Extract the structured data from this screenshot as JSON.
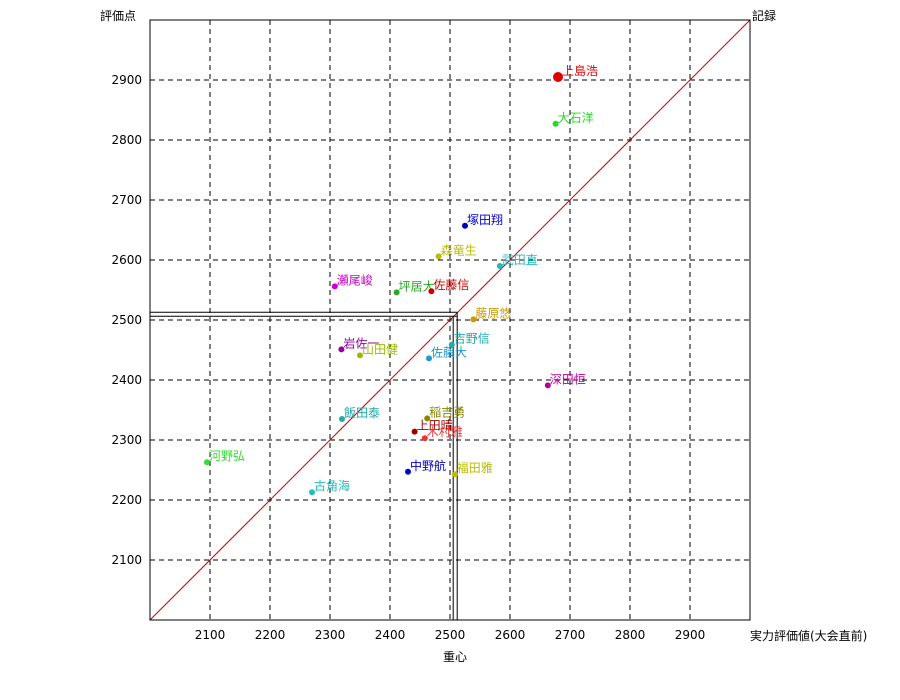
{
  "chart_data": {
    "type": "scatter",
    "ylabel": "評価点",
    "xlabel_right": "実力評価値(大会直前)",
    "xlabel_bottom": "重心",
    "diagonal_label": "記録",
    "xlim": [
      2000,
      3000
    ],
    "ylim": [
      2000,
      3000
    ],
    "xticks": [
      2100,
      2200,
      2300,
      2400,
      2500,
      2600,
      2700,
      2800,
      2900
    ],
    "yticks": [
      2100,
      2200,
      2300,
      2400,
      2500,
      2600,
      2700,
      2800,
      2900
    ],
    "grid": true,
    "centroid": {
      "x": 2512,
      "y": 2513
    },
    "diagonal": {
      "color": "#cc0000"
    },
    "points": [
      {
        "name": "上島浩",
        "x": 2680,
        "y": 2905,
        "color": "#e00000",
        "major": true
      },
      {
        "name": "大石洋",
        "x": 2676,
        "y": 2827,
        "color": "#22dd22"
      },
      {
        "name": "塚田翔",
        "x": 2525,
        "y": 2657,
        "color": "#0000cc"
      },
      {
        "name": "森竜生",
        "x": 2481,
        "y": 2606,
        "color": "#bbbb00"
      },
      {
        "name": "武田直",
        "x": 2583,
        "y": 2590,
        "color": "#22bbbb"
      },
      {
        "name": "瀬尾峻",
        "x": 2308,
        "y": 2556,
        "color": "#cc00cc"
      },
      {
        "name": "坪居大",
        "x": 2411,
        "y": 2546,
        "color": "#22aa22"
      },
      {
        "name": "佐藤信",
        "x": 2469,
        "y": 2548,
        "color": "#cc0000"
      },
      {
        "name": "藤原悠",
        "x": 2539,
        "y": 2501,
        "color": "#cc9900"
      },
      {
        "name": "吉野信",
        "x": 2503,
        "y": 2459,
        "color": "#22aaaa"
      },
      {
        "name": "岩佐一",
        "x": 2319,
        "y": 2451,
        "color": "#9900aa"
      },
      {
        "name": "山田健",
        "x": 2350,
        "y": 2441,
        "color": "#99bb00"
      },
      {
        "name": "佐藤大",
        "x": 2465,
        "y": 2436,
        "color": "#2299cc"
      },
      {
        "name": "深田恒",
        "x": 2663,
        "y": 2391,
        "color": "#bb0099"
      },
      {
        "name": "飯田泰",
        "x": 2320,
        "y": 2335,
        "color": "#22aaaa"
      },
      {
        "name": "稲吉勇",
        "x": 2462,
        "y": 2336,
        "color": "#888800"
      },
      {
        "name": "上田晴",
        "x": 2441,
        "y": 2314,
        "color": "#990000"
      },
      {
        "name": "木村雅",
        "x": 2458,
        "y": 2303,
        "color": "#ee3333"
      },
      {
        "name": "河野弘",
        "x": 2095,
        "y": 2263,
        "color": "#33dd33"
      },
      {
        "name": "中野航",
        "x": 2430,
        "y": 2247,
        "color": "#0000cc"
      },
      {
        "name": "福田雅",
        "x": 2508,
        "y": 2243,
        "color": "#bbbb00"
      },
      {
        "name": "古角海",
        "x": 2270,
        "y": 2213,
        "color": "#22bbbb"
      }
    ]
  }
}
